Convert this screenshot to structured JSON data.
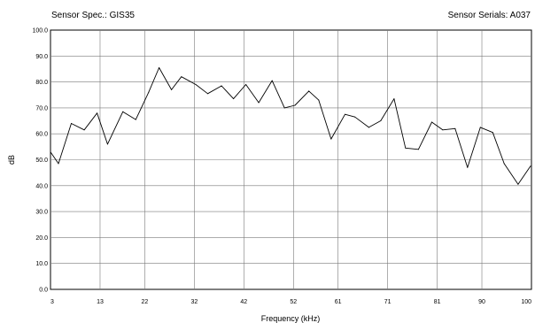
{
  "header": {
    "left": "Sensor Spec.: GIS35",
    "right": "Sensor Serials: A037"
  },
  "chart_data": {
    "type": "line",
    "title": "",
    "xlabel": "Frequency (kHz)",
    "ylabel": "dB",
    "xlim": [
      3,
      100
    ],
    "ylim": [
      0,
      100
    ],
    "grid": true,
    "x_ticks": [
      3,
      13,
      22,
      32,
      42,
      52,
      61,
      71,
      81,
      90,
      100
    ],
    "y_ticks": [
      0,
      10,
      20,
      30,
      40,
      50,
      60,
      70,
      80,
      90,
      100
    ],
    "y_tick_labels": [
      "0.0",
      "10.0",
      "20.0",
      "30.0",
      "40.0",
      "50.0",
      "60.0",
      "70.0",
      "80.0",
      "90.0",
      "100.0"
    ],
    "line_color": "#000000",
    "series": [
      {
        "x": [
          3,
          4.6,
          7.2,
          9.8,
          12.4,
          14.5,
          17.6,
          20.2,
          22.8,
          24.9,
          27.4,
          29.4,
          32.3,
          34.7,
          37.5,
          39.9,
          42.4,
          45,
          47.7,
          50.2,
          52.3,
          55.1,
          57.1,
          59.6,
          62.4,
          64.4,
          67.2,
          69.6,
          72.3,
          74.6,
          77.2,
          79.9,
          82.1,
          84.6,
          87.1,
          89.7,
          92.2,
          94.5,
          97.3,
          99.8
        ],
        "y": [
          53,
          48.5,
          64,
          61.5,
          68,
          56,
          68.5,
          65.5,
          76,
          85.5,
          77,
          82,
          79,
          75.5,
          78.5,
          73.5,
          79,
          72,
          80.5,
          70,
          71,
          76.5,
          73,
          58,
          67.5,
          66.5,
          62.5,
          65,
          73.5,
          54.5,
          54,
          64.5,
          61.5,
          62,
          47,
          62.5,
          60.5,
          48.5,
          40.5,
          47.5
        ]
      }
    ]
  }
}
